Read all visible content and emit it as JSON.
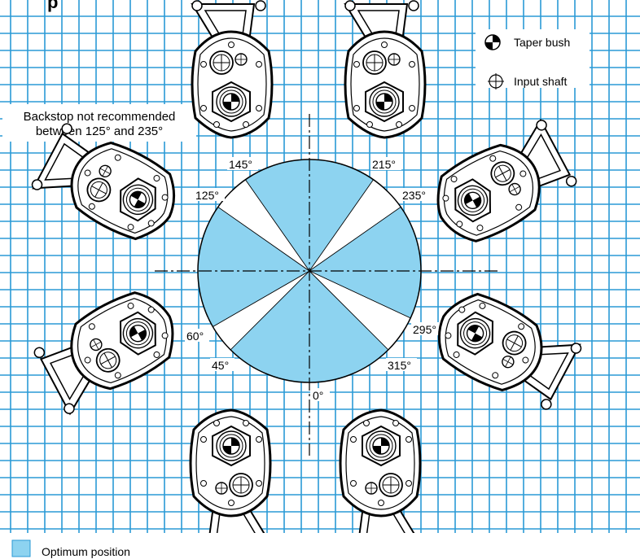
{
  "title_fragment": "p",
  "note": {
    "line1": "Backstop not recommended",
    "line2": "between 125° and 235°"
  },
  "legend": {
    "taper_bush": "Taper bush",
    "input_shaft": "Input shaft",
    "optimum_position": "Optimum position"
  },
  "colors": {
    "grid": "#2a9ad6",
    "optimum": "#8dd3f0",
    "line": "#000000"
  },
  "angle_labels": {
    "a0": "0°",
    "a45": "45°",
    "a60": "60°",
    "a125": "125°",
    "a145": "145°",
    "a215": "215°",
    "a235": "235°",
    "a295": "295°",
    "a315": "315°"
  },
  "sectors": [
    {
      "from": 315,
      "to": 45,
      "optimum": true
    },
    {
      "from": 45,
      "to": 60,
      "optimum": false
    },
    {
      "from": 60,
      "to": 125,
      "optimum": true
    },
    {
      "from": 125,
      "to": 145,
      "optimum": false
    },
    {
      "from": 145,
      "to": 215,
      "optimum": true
    },
    {
      "from": 215,
      "to": 235,
      "optimum": false
    },
    {
      "from": 235,
      "to": 295,
      "optimum": true
    },
    {
      "from": 295,
      "to": 315,
      "optimum": false
    }
  ]
}
